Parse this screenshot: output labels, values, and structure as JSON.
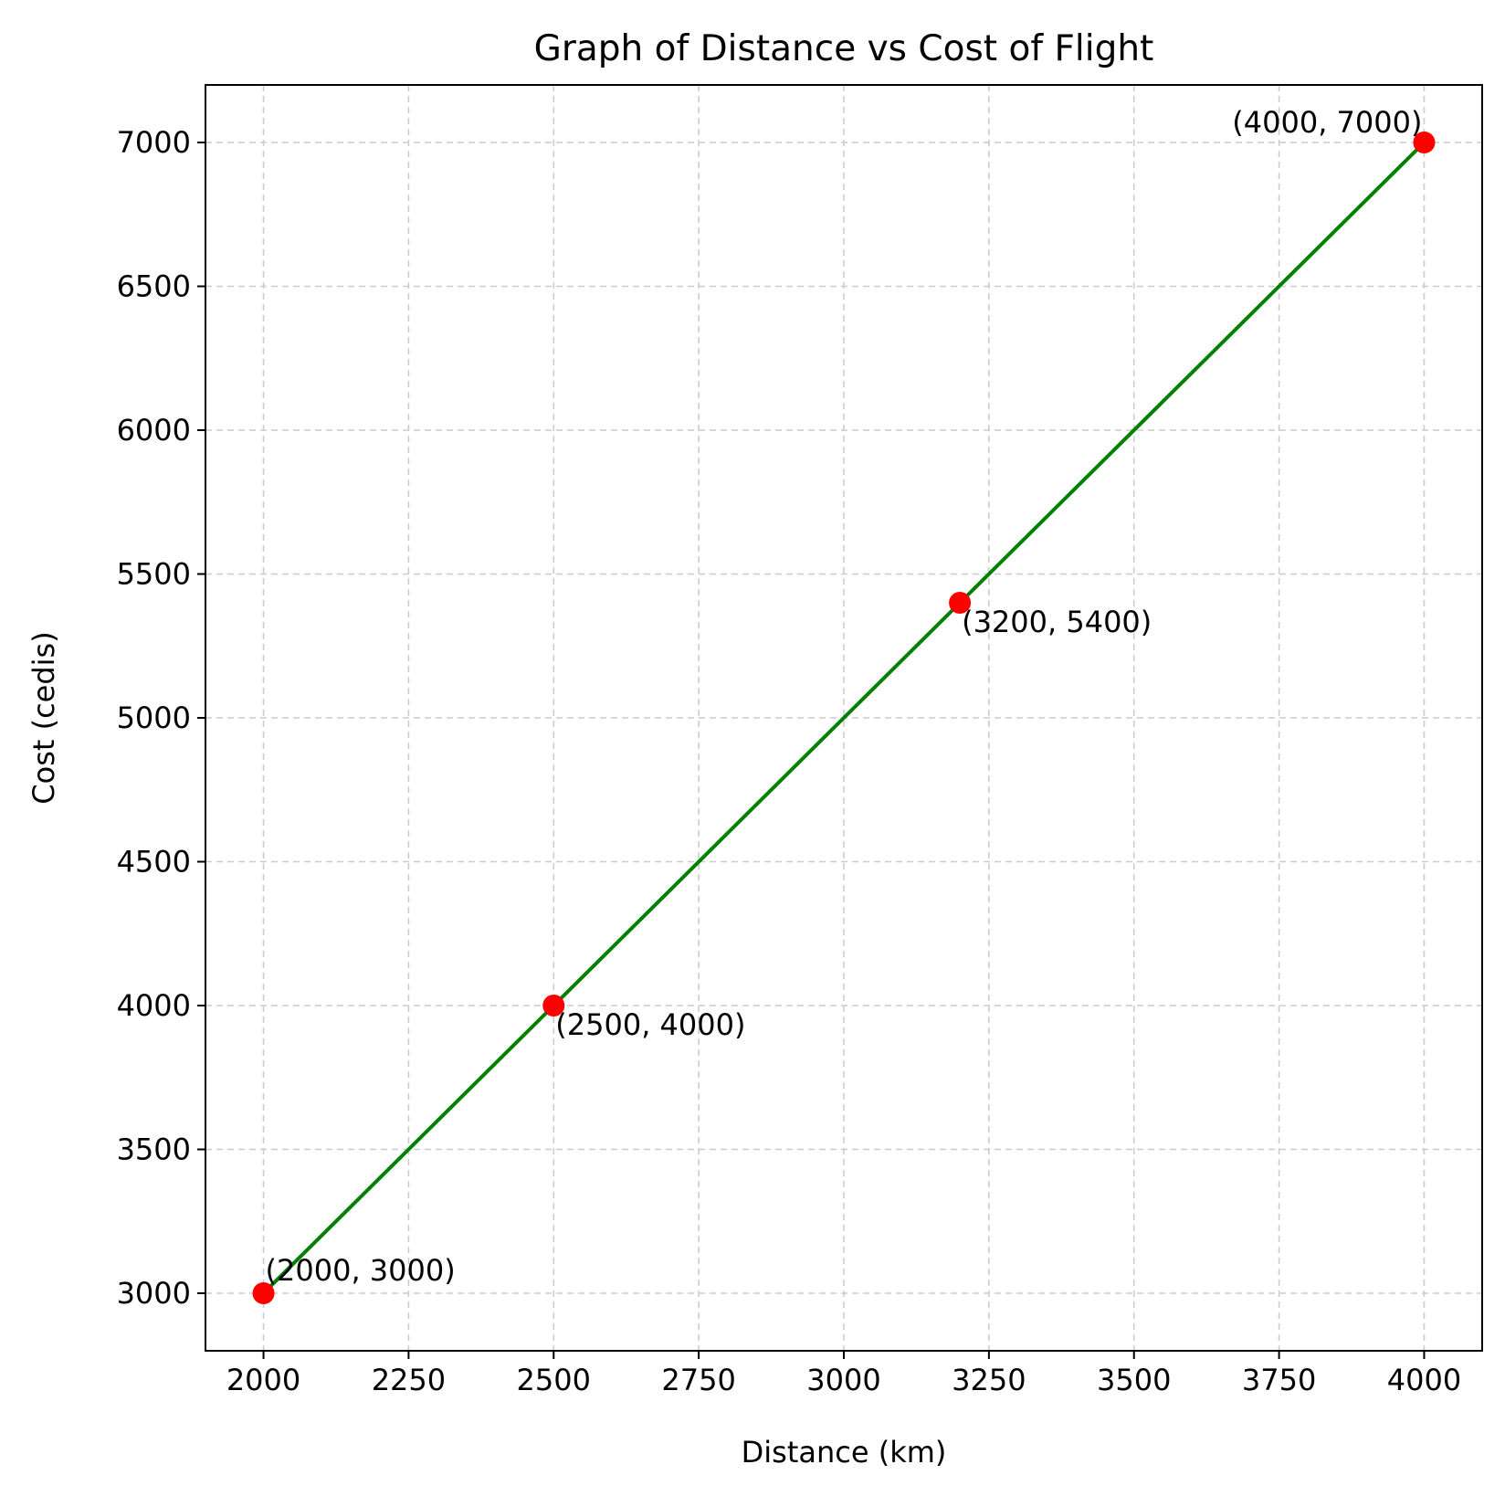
{
  "chart_data": {
    "type": "line",
    "title": "Graph of Distance vs Cost of Flight",
    "xlabel": "Distance (km)",
    "ylabel": "Cost (cedis)",
    "xlim": [
      1900,
      4100
    ],
    "ylim": [
      2800,
      7200
    ],
    "xticks": [
      2000,
      2250,
      2500,
      2750,
      3000,
      3250,
      3500,
      3750,
      4000
    ],
    "yticks": [
      3000,
      3500,
      4000,
      4500,
      5000,
      5500,
      6000,
      6500,
      7000
    ],
    "grid": true,
    "line_color": "#008000",
    "marker_color": "#ff0000",
    "series": [
      {
        "x": [
          2000,
          2500,
          3200,
          4000
        ],
        "y": [
          3000,
          4000,
          5400,
          7000
        ]
      }
    ],
    "annotations": [
      {
        "text": "(2000, 3000)",
        "x": 2000,
        "y": 3000,
        "placement": "above-right"
      },
      {
        "text": "(2500, 4000)",
        "x": 2500,
        "y": 4000,
        "placement": "below-right"
      },
      {
        "text": "(3200, 5400)",
        "x": 3200,
        "y": 5400,
        "placement": "below-right"
      },
      {
        "text": "(4000, 7000)",
        "x": 4000,
        "y": 7000,
        "placement": "above-left"
      }
    ]
  }
}
